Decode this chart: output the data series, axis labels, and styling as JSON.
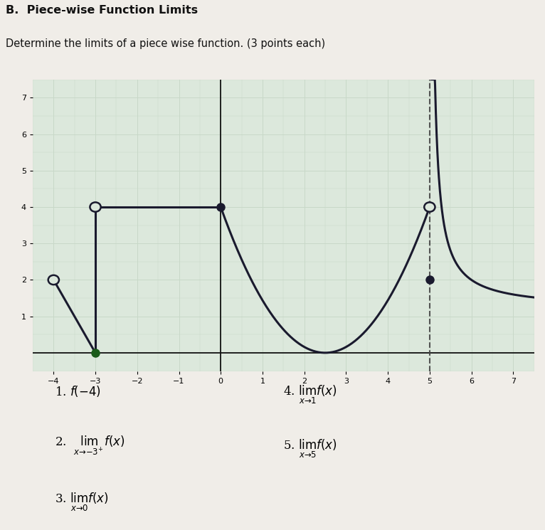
{
  "title_bold": "B.  Piece-wise Function Limits",
  "subtitle": "Determine the limits of a piece wise function. (3 points each)",
  "xlim": [
    -4.5,
    7.5
  ],
  "ylim": [
    -0.5,
    7.5
  ],
  "xticks": [
    -4,
    -3,
    -2,
    -1,
    0,
    1,
    2,
    3,
    4,
    5,
    6,
    7
  ],
  "yticks": [
    1,
    2,
    3,
    4,
    5,
    6,
    7
  ],
  "grid_color": "#c8d8c8",
  "bg_color": "#dce8dc",
  "line_color": "#1a1a2e",
  "dashed_line_color": "#555555",
  "open_circle_facecolor": "#dce8dc",
  "filled_circle_color": "#1a1a2e",
  "green_filled_color": "#1a5c1a"
}
